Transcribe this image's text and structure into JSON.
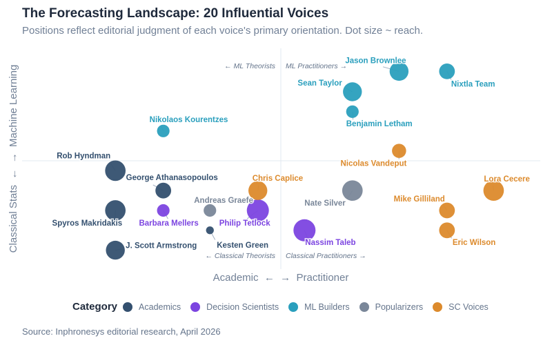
{
  "chart_data": {
    "type": "scatter",
    "title": "The Forecasting Landscape: 20 Influential Voices",
    "subtitle": "Positions reflect editorial judgment of each voice's primary orientation. Dot size ~ reach.",
    "xlabel": "Academic  ←  →  Practitioner",
    "ylabel": "Classical Stats  ←  →  Machine Learning",
    "xlim": [
      -10,
      10
    ],
    "ylim": [
      -10,
      10
    ],
    "grid": false,
    "quadrant_labels": {
      "top_left": "← ML Theorists",
      "top_right": "ML Practitioners →",
      "bottom_left": "← Classical Theorists",
      "bottom_right": "Classical Practitioners →"
    },
    "legend": {
      "title": "Category",
      "placement": "bottom"
    },
    "categories": [
      {
        "name": "Academics",
        "color": "#34506f"
      },
      {
        "name": "Decision Scientists",
        "color": "#7c45e0"
      },
      {
        "name": "ML Builders",
        "color": "#2a9fbd"
      },
      {
        "name": "Popularizers",
        "color": "#7a8799"
      },
      {
        "name": "SC Voices",
        "color": "#dc8a2c"
      }
    ],
    "points": [
      {
        "name": "Rob Hyndman",
        "category": "Academics",
        "x": -6.4,
        "y": -0.9,
        "reach": 9
      },
      {
        "name": "George Athanasopoulos",
        "category": "Academics",
        "x": -4.55,
        "y": -2.7,
        "reach": 6
      },
      {
        "name": "Spyros Makridakis",
        "category": "Academics",
        "x": -6.4,
        "y": -4.5,
        "reach": 9
      },
      {
        "name": "Barbara Mellers",
        "category": "Decision Scientists",
        "x": -4.55,
        "y": -4.5,
        "reach": 4
      },
      {
        "name": "Andreas Graefe",
        "category": "Popularizers",
        "x": -2.75,
        "y": -4.5,
        "reach": 4
      },
      {
        "name": "Philip Tetlock",
        "category": "Decision Scientists",
        "x": -0.9,
        "y": -4.5,
        "reach": 10
      },
      {
        "name": "Chris Caplice",
        "category": "SC Voices",
        "x": -0.9,
        "y": -2.7,
        "reach": 8
      },
      {
        "name": "Kesten Green",
        "category": "Academics",
        "x": -2.75,
        "y": -6.3,
        "reach": 1
      },
      {
        "name": "J. Scott Armstrong",
        "category": "Academics",
        "x": -6.4,
        "y": -8.1,
        "reach": 8
      },
      {
        "name": "Nikolaos Kourentzes",
        "category": "ML Builders",
        "x": -4.55,
        "y": 2.7,
        "reach": 4
      },
      {
        "name": "Nassim Taleb",
        "category": "Decision Scientists",
        "x": 0.9,
        "y": -6.3,
        "reach": 10
      },
      {
        "name": "Nate Silver",
        "category": "Popularizers",
        "x": 2.75,
        "y": -2.7,
        "reach": 9
      },
      {
        "name": "Sean Taylor",
        "category": "ML Builders",
        "x": 2.75,
        "y": 6.25,
        "reach": 8
      },
      {
        "name": "Benjamin Letham",
        "category": "ML Builders",
        "x": 2.75,
        "y": 4.45,
        "reach": 4
      },
      {
        "name": "Jason Brownlee",
        "category": "ML Builders",
        "x": 4.55,
        "y": 8.1,
        "reach": 8
      },
      {
        "name": "Nixtla Team",
        "category": "ML Builders",
        "x": 6.4,
        "y": 8.1,
        "reach": 6
      },
      {
        "name": "Nicolas Vandeput",
        "category": "SC Voices",
        "x": 4.55,
        "y": 0.9,
        "reach": 5
      },
      {
        "name": "Lora Cecere",
        "category": "SC Voices",
        "x": 8.2,
        "y": -2.7,
        "reach": 9
      },
      {
        "name": "Mike Gilliland",
        "category": "SC Voices",
        "x": 6.4,
        "y": -4.5,
        "reach": 6
      },
      {
        "name": "Eric Wilson",
        "category": "SC Voices",
        "x": 6.4,
        "y": -6.3,
        "reach": 6
      }
    ],
    "source": "Source: Inphronesys editorial research, April 2026"
  }
}
